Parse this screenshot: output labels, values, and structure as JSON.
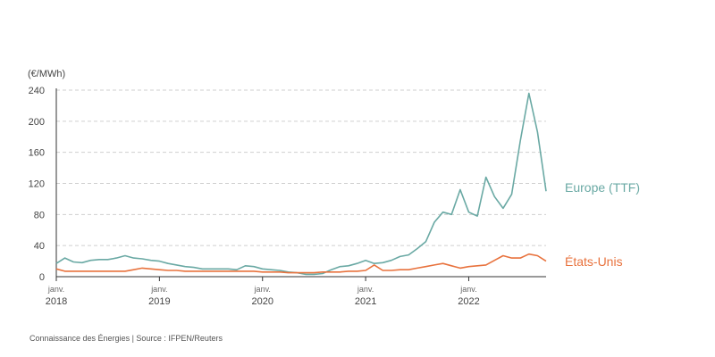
{
  "chart_data": {
    "type": "line",
    "y_unit": "(€/MWh)",
    "ylim": [
      0,
      240
    ],
    "y_ticks": [
      0,
      40,
      80,
      120,
      160,
      200,
      240
    ],
    "grid": "horizontal-dashed",
    "x_range": [
      "2018-01",
      "2022-10"
    ],
    "x_ticks": [
      {
        "x": "2018-01",
        "month": "janv.",
        "year": "2018"
      },
      {
        "x": "2019-01",
        "month": "janv.",
        "year": "2019"
      },
      {
        "x": "2020-01",
        "month": "janv.",
        "year": "2020"
      },
      {
        "x": "2021-01",
        "month": "janv.",
        "year": "2021"
      },
      {
        "x": "2022-01",
        "month": "janv.",
        "year": "2022"
      }
    ],
    "legend": "inline-right",
    "series": [
      {
        "name": "Europe (TTF)",
        "color": "#6aa9a4",
        "points": [
          [
            "2018-01",
            17
          ],
          [
            "2018-02",
            24
          ],
          [
            "2018-03",
            19
          ],
          [
            "2018-04",
            18
          ],
          [
            "2018-05",
            21
          ],
          [
            "2018-06",
            22
          ],
          [
            "2018-07",
            22
          ],
          [
            "2018-08",
            24
          ],
          [
            "2018-09",
            27
          ],
          [
            "2018-10",
            24
          ],
          [
            "2018-11",
            23
          ],
          [
            "2018-12",
            21
          ],
          [
            "2019-01",
            20
          ],
          [
            "2019-02",
            17
          ],
          [
            "2019-03",
            15
          ],
          [
            "2019-04",
            13
          ],
          [
            "2019-05",
            12
          ],
          [
            "2019-06",
            10
          ],
          [
            "2019-07",
            10
          ],
          [
            "2019-08",
            10
          ],
          [
            "2019-09",
            10
          ],
          [
            "2019-10",
            9
          ],
          [
            "2019-11",
            14
          ],
          [
            "2019-12",
            13
          ],
          [
            "2020-01",
            10
          ],
          [
            "2020-02",
            9
          ],
          [
            "2020-03",
            8
          ],
          [
            "2020-04",
            6
          ],
          [
            "2020-05",
            5
          ],
          [
            "2020-06",
            3
          ],
          [
            "2020-07",
            3
          ],
          [
            "2020-08",
            4
          ],
          [
            "2020-09",
            9
          ],
          [
            "2020-10",
            13
          ],
          [
            "2020-11",
            14
          ],
          [
            "2020-12",
            17
          ],
          [
            "2021-01",
            21
          ],
          [
            "2021-02",
            17
          ],
          [
            "2021-03",
            18
          ],
          [
            "2021-04",
            21
          ],
          [
            "2021-05",
            26
          ],
          [
            "2021-06",
            28
          ],
          [
            "2021-07",
            36
          ],
          [
            "2021-08",
            45
          ],
          [
            "2021-09",
            70
          ],
          [
            "2021-10",
            83
          ],
          [
            "2021-11",
            80
          ],
          [
            "2021-12",
            112
          ],
          [
            "2022-01",
            83
          ],
          [
            "2022-02",
            78
          ],
          [
            "2022-03",
            128
          ],
          [
            "2022-04",
            103
          ],
          [
            "2022-05",
            88
          ],
          [
            "2022-06",
            106
          ],
          [
            "2022-07",
            175
          ],
          [
            "2022-08",
            236
          ],
          [
            "2022-09",
            186
          ],
          [
            "2022-10",
            110
          ]
        ]
      },
      {
        "name": "États-Unis",
        "color": "#e8723d",
        "points": [
          [
            "2018-01",
            10
          ],
          [
            "2018-02",
            7
          ],
          [
            "2018-03",
            7
          ],
          [
            "2018-04",
            7
          ],
          [
            "2018-05",
            7
          ],
          [
            "2018-06",
            7
          ],
          [
            "2018-07",
            7
          ],
          [
            "2018-08",
            7
          ],
          [
            "2018-09",
            7
          ],
          [
            "2018-10",
            9
          ],
          [
            "2018-11",
            11
          ],
          [
            "2018-12",
            10
          ],
          [
            "2019-01",
            9
          ],
          [
            "2019-02",
            8
          ],
          [
            "2019-03",
            8
          ],
          [
            "2019-04",
            7
          ],
          [
            "2019-05",
            7
          ],
          [
            "2019-06",
            7
          ],
          [
            "2019-07",
            7
          ],
          [
            "2019-08",
            7
          ],
          [
            "2019-09",
            7
          ],
          [
            "2019-10",
            7
          ],
          [
            "2019-11",
            7
          ],
          [
            "2019-12",
            7
          ],
          [
            "2020-01",
            6
          ],
          [
            "2020-02",
            6
          ],
          [
            "2020-03",
            6
          ],
          [
            "2020-04",
            5
          ],
          [
            "2020-05",
            5
          ],
          [
            "2020-06",
            5
          ],
          [
            "2020-07",
            5
          ],
          [
            "2020-08",
            6
          ],
          [
            "2020-09",
            6
          ],
          [
            "2020-10",
            6
          ],
          [
            "2020-11",
            7
          ],
          [
            "2020-12",
            7
          ],
          [
            "2021-01",
            8
          ],
          [
            "2021-02",
            15
          ],
          [
            "2021-03",
            8
          ],
          [
            "2021-04",
            8
          ],
          [
            "2021-05",
            9
          ],
          [
            "2021-06",
            9
          ],
          [
            "2021-07",
            11
          ],
          [
            "2021-08",
            13
          ],
          [
            "2021-09",
            15
          ],
          [
            "2021-10",
            17
          ],
          [
            "2021-11",
            14
          ],
          [
            "2021-12",
            11
          ],
          [
            "2022-01",
            13
          ],
          [
            "2022-02",
            14
          ],
          [
            "2022-03",
            15
          ],
          [
            "2022-04",
            21
          ],
          [
            "2022-05",
            27
          ],
          [
            "2022-06",
            24
          ],
          [
            "2022-07",
            24
          ],
          [
            "2022-08",
            29
          ],
          [
            "2022-09",
            27
          ],
          [
            "2022-10",
            20
          ]
        ]
      }
    ]
  },
  "footer": {
    "source": "Connaissance des Énergies | Source : IFPEN/Reuters"
  }
}
